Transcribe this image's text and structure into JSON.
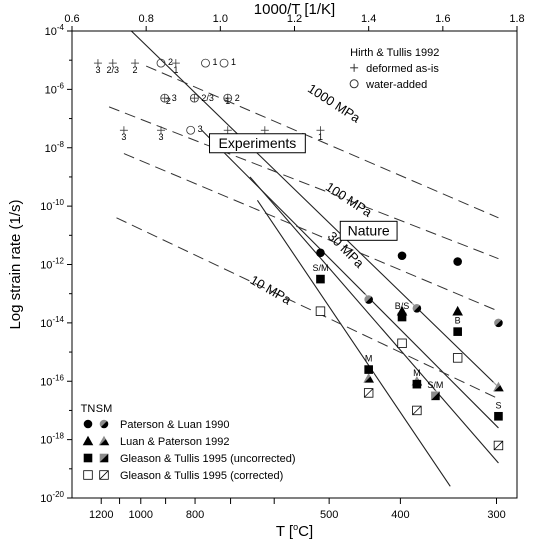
{
  "chart_data": {
    "type": "scatter",
    "bottom_axis": {
      "label": "T [",
      "label_unit": "C]",
      "ticks": [
        1200,
        1100,
        1000,
        900,
        800,
        700,
        600,
        500,
        400,
        300
      ],
      "tick_labels": [
        "1200",
        "",
        "1000",
        "",
        "800",
        "",
        "",
        "500",
        "400",
        "300"
      ]
    },
    "top_axis": {
      "label": "1000/T [1/K]",
      "range": [
        0.6,
        1.8
      ],
      "ticks": [
        0.6,
        0.8,
        1.0,
        1.2,
        1.4,
        1.6,
        1.8
      ],
      "tick_labels": [
        "0.6",
        "0.8",
        "1.0",
        "1.2",
        "1.4",
        "1.6",
        "1.8"
      ]
    },
    "y_axis": {
      "label": "Log strain rate (1/s)",
      "scale": "log",
      "range_exponent": [
        -20,
        -4
      ],
      "tick_exponents": [
        -20,
        -18,
        -16,
        -14,
        -12,
        -10,
        -8,
        -6,
        -4
      ]
    },
    "stress_lines": [
      {
        "label": "1000 MPa",
        "solid": [
          [
            0.76,
            -4.0
          ],
          [
            1.75,
            -16.2
          ]
        ],
        "dashed": [
          [
            0.8,
            -5.2
          ],
          [
            1.75,
            -10.4
          ]
        ]
      },
      {
        "label": "100 MPa",
        "solid": [
          [
            0.95,
            -7.4
          ],
          [
            1.75,
            -17.6
          ]
        ],
        "dashed": [
          [
            0.7,
            -6.6
          ],
          [
            1.75,
            -11.8
          ]
        ]
      },
      {
        "label": "30 MPa",
        "solid": [
          [
            1.08,
            -9.0
          ],
          [
            1.75,
            -18.8
          ]
        ],
        "dashed": [
          [
            0.74,
            -8.2
          ],
          [
            1.75,
            -13.6
          ]
        ]
      },
      {
        "label": "10 MPa",
        "solid": [
          [
            1.1,
            -9.8
          ],
          [
            1.62,
            -19.6
          ]
        ],
        "dashed": [
          [
            0.72,
            -10.4
          ],
          [
            1.75,
            -16.6
          ]
        ]
      }
    ],
    "region_labels": {
      "experiments": "Experiments",
      "nature": "Nature"
    },
    "hirth_tullis": {
      "title": "Hirth & Tullis 1992",
      "legend": [
        {
          "symbol": "plus",
          "label": "deformed as-is"
        },
        {
          "symbol": "circle",
          "label": "water-added"
        }
      ],
      "points": [
        {
          "x": 0.67,
          "y": -5.1,
          "symbol": "plus",
          "label": "3"
        },
        {
          "x": 0.71,
          "y": -5.1,
          "symbol": "plus",
          "label": "2/3"
        },
        {
          "x": 0.77,
          "y": -5.1,
          "symbol": "plus",
          "label": "2"
        },
        {
          "x": 0.84,
          "y": -5.1,
          "symbol": "circle",
          "label": "2"
        },
        {
          "x": 0.88,
          "y": -5.1,
          "symbol": "plus",
          "label": "1"
        },
        {
          "x": 0.96,
          "y": -5.1,
          "symbol": "circle",
          "label": "1"
        },
        {
          "x": 1.01,
          "y": -5.1,
          "symbol": "circle",
          "label": "1"
        },
        {
          "x": 0.85,
          "y": -6.3,
          "symbol": "circleplus",
          "label": "3"
        },
        {
          "x": 0.93,
          "y": -6.3,
          "symbol": "circleplus",
          "label": "2/3"
        },
        {
          "x": 1.02,
          "y": -6.3,
          "symbol": "circleplus",
          "label": "2"
        },
        {
          "x": 0.86,
          "y": -6.5,
          "symbol": "label",
          "label": "2"
        },
        {
          "x": 1.02,
          "y": -6.5,
          "symbol": "label",
          "label": "1"
        },
        {
          "x": 0.74,
          "y": -7.4,
          "symbol": "plus",
          "label": "3"
        },
        {
          "x": 0.84,
          "y": -7.4,
          "symbol": "plus",
          "label": "3"
        },
        {
          "x": 0.92,
          "y": -7.4,
          "symbol": "circle",
          "label": "3"
        },
        {
          "x": 1.02,
          "y": -7.4,
          "symbol": "plus",
          "label": "2/3"
        },
        {
          "x": 1.12,
          "y": -7.4,
          "symbol": "plus",
          "label": "2"
        },
        {
          "x": 1.27,
          "y": -7.4,
          "symbol": "plus",
          "label": "1"
        }
      ]
    },
    "legend": {
      "headers": [
        "TN",
        "SM"
      ],
      "entries": [
        {
          "label": "Paterson & Luan 1990",
          "symbol": "circle"
        },
        {
          "label": "Luan & Paterson 1992",
          "symbol": "triangle"
        },
        {
          "label": "Gleason & Tullis 1995 (uncorrected)",
          "symbol": "square"
        },
        {
          "label": "Gleason & Tullis 1995 (corrected)",
          "symbol": "open-square"
        }
      ]
    },
    "series": [
      {
        "name": "Paterson & Luan 1990",
        "symbol": "circle",
        "points": [
          {
            "x": 1.27,
            "y": -11.6,
            "half": "tn"
          },
          {
            "x": 1.49,
            "y": -11.7,
            "half": "tn"
          },
          {
            "x": 1.64,
            "y": -11.9,
            "half": "tn"
          },
          {
            "x": 1.4,
            "y": -13.2,
            "half": "sm"
          },
          {
            "x": 1.53,
            "y": -13.5,
            "half": "sm"
          },
          {
            "x": 1.75,
            "y": -14.0,
            "half": "sm"
          }
        ]
      },
      {
        "name": "Luan & Paterson 1992",
        "symbol": "triangle",
        "points": [
          {
            "x": 1.49,
            "y": -13.6,
            "half": "tn"
          },
          {
            "x": 1.64,
            "y": -13.6,
            "half": "tn"
          },
          {
            "x": 1.4,
            "y": -15.9,
            "half": "sm"
          },
          {
            "x": 1.53,
            "y": -16.0,
            "half": "sm"
          },
          {
            "x": 1.75,
            "y": -16.2,
            "half": "sm"
          }
        ]
      },
      {
        "name": "Gleason & Tullis 1995 (uncorrected)",
        "symbol": "square",
        "points": [
          {
            "x": 1.27,
            "y": -12.5,
            "half": "tn"
          },
          {
            "x": 1.4,
            "y": -15.6,
            "half": "tn"
          },
          {
            "x": 1.49,
            "y": -13.8,
            "half": "tn"
          },
          {
            "x": 1.53,
            "y": -16.1,
            "half": "tn"
          },
          {
            "x": 1.64,
            "y": -14.3,
            "half": "tn"
          },
          {
            "x": 1.58,
            "y": -16.5,
            "half": "sm"
          },
          {
            "x": 1.75,
            "y": -17.2,
            "half": "tn"
          }
        ]
      },
      {
        "name": "Gleason & Tullis 1995 (corrected)",
        "symbol": "open-square",
        "points": [
          {
            "x": 1.27,
            "y": -13.6,
            "half": "tn"
          },
          {
            "x": 1.4,
            "y": -16.4,
            "half": "sm"
          },
          {
            "x": 1.49,
            "y": -14.7,
            "half": "tn"
          },
          {
            "x": 1.53,
            "y": -17.0,
            "half": "sm"
          },
          {
            "x": 1.64,
            "y": -15.2,
            "half": "tn"
          },
          {
            "x": 1.75,
            "y": -18.2,
            "half": "sm"
          }
        ]
      }
    ],
    "point_labels": [
      {
        "x": 1.27,
        "y": -12.5,
        "text": "S/M"
      },
      {
        "x": 1.4,
        "y": -15.6,
        "text": "M"
      },
      {
        "x": 1.49,
        "y": -13.8,
        "text": "B/S"
      },
      {
        "x": 1.53,
        "y": -16.1,
        "text": "M"
      },
      {
        "x": 1.58,
        "y": -16.5,
        "text": "S/M"
      },
      {
        "x": 1.64,
        "y": -14.3,
        "text": "B"
      },
      {
        "x": 1.75,
        "y": -17.2,
        "text": "S"
      }
    ]
  }
}
